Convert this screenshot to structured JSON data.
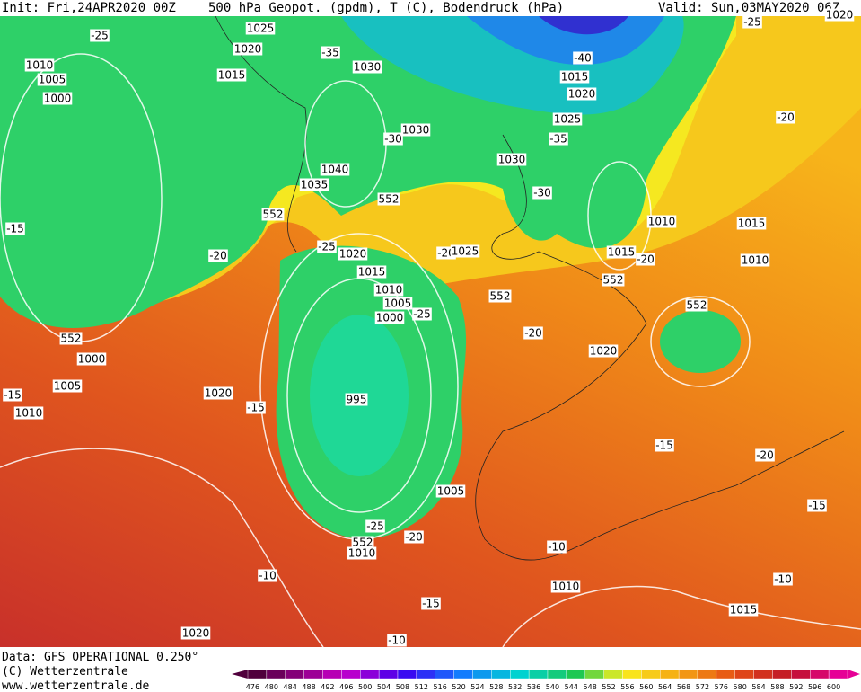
{
  "header": {
    "init": "Init: Fri,24APR2020 00Z",
    "title": "500 hPa Geopot. (gpdm), T (C), Bodendruck (hPa)",
    "valid": "Valid: Sun,03MAY2020 06Z"
  },
  "contour_labels": [
    "1025",
    "1020",
    "-25",
    "1010",
    "1005",
    "1015",
    "1000",
    "-35",
    "1030",
    "1030",
    "-30",
    "1040",
    "1035",
    "552",
    "552",
    "-15",
    "-20",
    "-25",
    "1020",
    "-20",
    "1025",
    "1015",
    "1010",
    "1005",
    "1000",
    "-25",
    "552",
    "1000",
    "1005",
    "1010",
    "-15",
    "1020",
    "-15",
    "995",
    "1005",
    "-25",
    "552",
    "1010",
    "-20",
    "-10",
    "-15",
    "-10",
    "1020",
    "-10",
    "1010",
    "-15",
    "-20",
    "-15",
    "-10",
    "1015",
    "1020",
    "-20",
    "552",
    "552",
    "1015",
    "-20",
    "1010",
    "1015",
    "1010",
    "552",
    "-30",
    "1030",
    "-35",
    "1025",
    "1020",
    "1015",
    "-40",
    "-25",
    "-20",
    "1020"
  ],
  "legend": {
    "values": [
      476,
      480,
      484,
      488,
      492,
      496,
      500,
      504,
      508,
      512,
      516,
      520,
      524,
      528,
      532,
      536,
      540,
      544,
      548,
      552,
      556,
      560,
      564,
      568,
      572,
      576,
      580,
      584,
      588,
      592,
      596,
      600
    ]
  },
  "footer": {
    "source": "Data: GFS OPERATIONAL 0.250°",
    "copyright": "(C) Wetterzentrale",
    "url": "www.wetterzentrale.de"
  }
}
